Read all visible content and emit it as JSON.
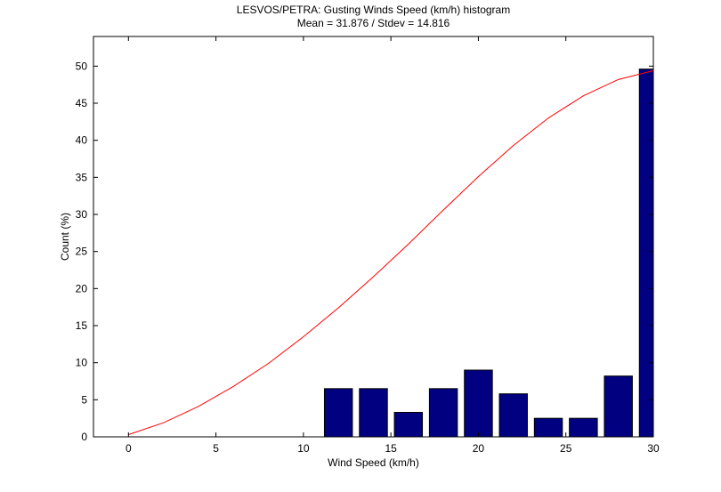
{
  "chart_data": {
    "type": "bar",
    "title": "LESVOS/PETRA: Gusting Winds Speed (km/h) histogram",
    "subtitle": "Mean = 31.876 / Stdev = 14.816",
    "xlabel": "Wind Speed (km/h)",
    "ylabel": "Count (%)",
    "xlim": [
      -2,
      30
    ],
    "ylim": [
      0,
      54
    ],
    "xticks": [
      0,
      5,
      10,
      15,
      20,
      25,
      30
    ],
    "yticks": [
      0,
      5,
      10,
      15,
      20,
      25,
      30,
      35,
      40,
      45,
      50
    ],
    "grid": false,
    "bar_color": "#000080",
    "bars": [
      {
        "x": 12,
        "value": 6.5
      },
      {
        "x": 14,
        "value": 6.5
      },
      {
        "x": 16,
        "value": 3.3
      },
      {
        "x": 18,
        "value": 6.5
      },
      {
        "x": 20,
        "value": 9.0
      },
      {
        "x": 22,
        "value": 5.8
      },
      {
        "x": 24,
        "value": 2.5
      },
      {
        "x": 26,
        "value": 2.5
      },
      {
        "x": 28,
        "value": 8.2
      },
      {
        "x": 30,
        "value": 49.6
      }
    ],
    "curve": {
      "color": "#ff0000",
      "x": [
        0,
        2,
        4,
        6,
        8,
        10,
        12,
        14,
        16,
        18,
        20,
        22,
        24,
        26,
        28,
        30
      ],
      "y": [
        0.3,
        1.9,
        4.1,
        6.8,
        9.9,
        13.5,
        17.4,
        21.6,
        26.0,
        30.6,
        35.1,
        39.3,
        43.0,
        46.0,
        48.2,
        49.4
      ]
    }
  }
}
